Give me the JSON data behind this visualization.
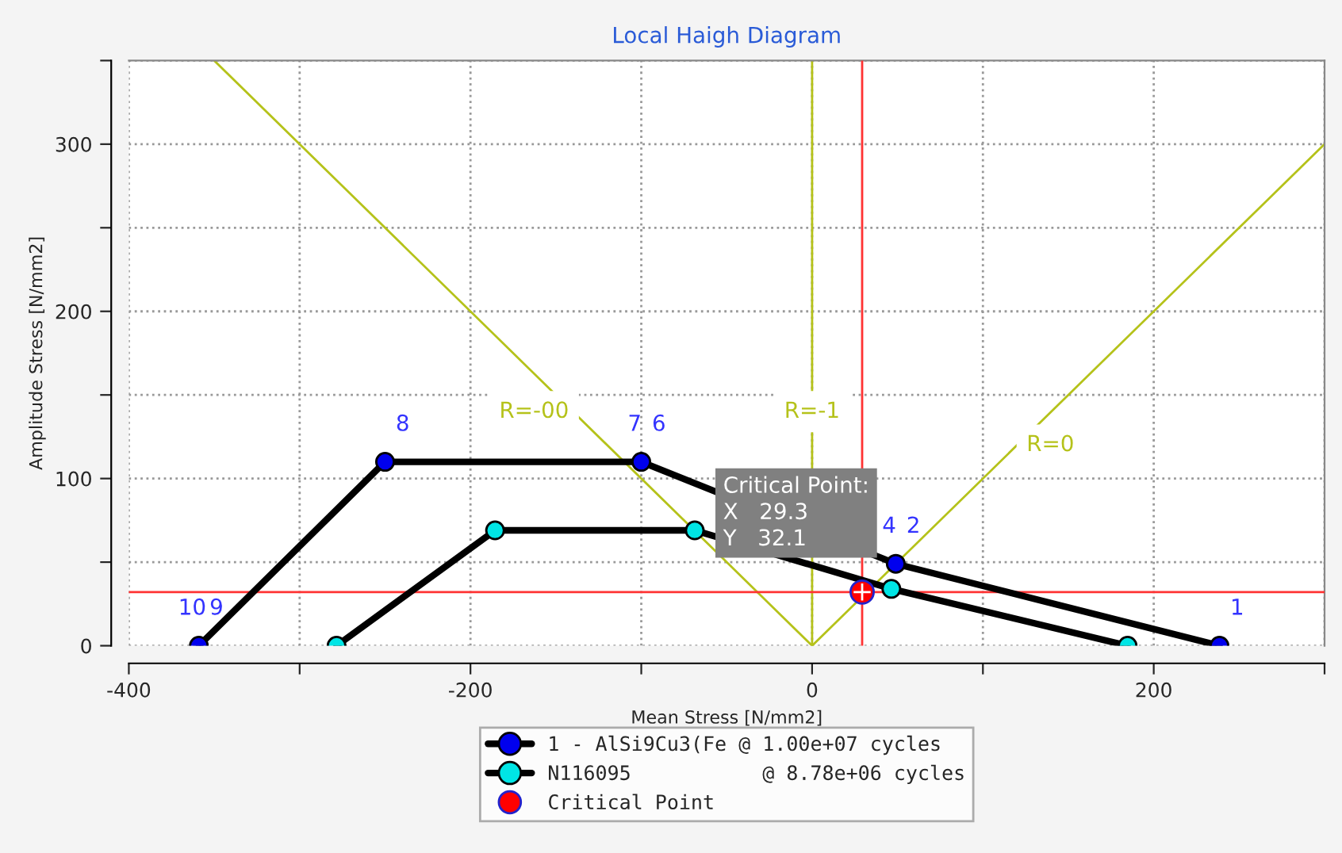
{
  "chart_data": {
    "type": "line",
    "title": "Local Haigh Diagram",
    "xlabel": "Mean Stress [N/mm2]",
    "ylabel": "Amplitude Stress [N/mm2]",
    "xlim": [
      -400,
      300
    ],
    "ylim": [
      0,
      350
    ],
    "xticks": [
      -400,
      {
        "value": -300,
        "label": null
      },
      -200,
      {
        "value": -100,
        "label": null
      },
      0,
      {
        "value": 100,
        "label": null
      },
      200,
      {
        "value": 300,
        "label": null
      }
    ],
    "yticks": [
      0,
      {
        "value": 50,
        "label": null
      },
      100,
      {
        "value": 150,
        "label": null
      },
      200,
      {
        "value": 250,
        "label": null
      },
      300,
      {
        "value": 350,
        "label": null
      }
    ],
    "grid": true,
    "legend": "bottom",
    "series": [
      {
        "name": "R=0",
        "color": "#b5c21a",
        "marker": "none",
        "x": [
          0,
          300
        ],
        "values": [
          0,
          300
        ]
      },
      {
        "name": "R=-00",
        "color": "#b5c21a",
        "marker": "none",
        "x": [
          0,
          -350
        ],
        "values": [
          0,
          350
        ]
      },
      {
        "name": "R=-1",
        "color": "#b5c21a",
        "marker": "none",
        "x": [
          0,
          0
        ],
        "values": [
          0,
          350
        ]
      },
      {
        "name": "1 - AlSi9Cu3(Fe @ 1.00e+07 cycles",
        "color": "#0000ee",
        "marker": "circle",
        "x": [
          238.5,
          49,
          -100,
          -250,
          -359
        ],
        "values": [
          0,
          49,
          110,
          110,
          0
        ]
      },
      {
        "name": "N116095           @ 8.78e+06 cycles",
        "color": "#00e5e5",
        "marker": "circle",
        "x": [
          184.7,
          46.4,
          -68.7,
          -185.6,
          -278.4
        ],
        "values": [
          0,
          34,
          69,
          69,
          0
        ]
      },
      {
        "type": "scatter",
        "name": "Critical Point",
        "color": "#ff0000",
        "x": [
          29.3
        ],
        "values": [
          32.1
        ]
      }
    ],
    "ref_lines": [
      {
        "axis": "x",
        "value": 29.3,
        "color": "#ff3333"
      },
      {
        "axis": "y",
        "value": 32.1,
        "color": "#ff3333"
      }
    ],
    "annotations": [
      {
        "text": "1",
        "x": 238.5,
        "y": 0
      },
      {
        "text": "4",
        "x": 49,
        "y": 49
      },
      {
        "text": "2",
        "x": 49,
        "y": 49
      },
      {
        "text": "7",
        "x": -100,
        "y": 110
      },
      {
        "text": "6",
        "x": -100,
        "y": 110
      },
      {
        "text": "8",
        "x": -250,
        "y": 110
      },
      {
        "text": "10",
        "x": -359,
        "y": 0
      },
      {
        "text": "9",
        "x": -359,
        "y": 0
      },
      "Critical Point:\nX   29.3\nY   32.1"
    ]
  }
}
